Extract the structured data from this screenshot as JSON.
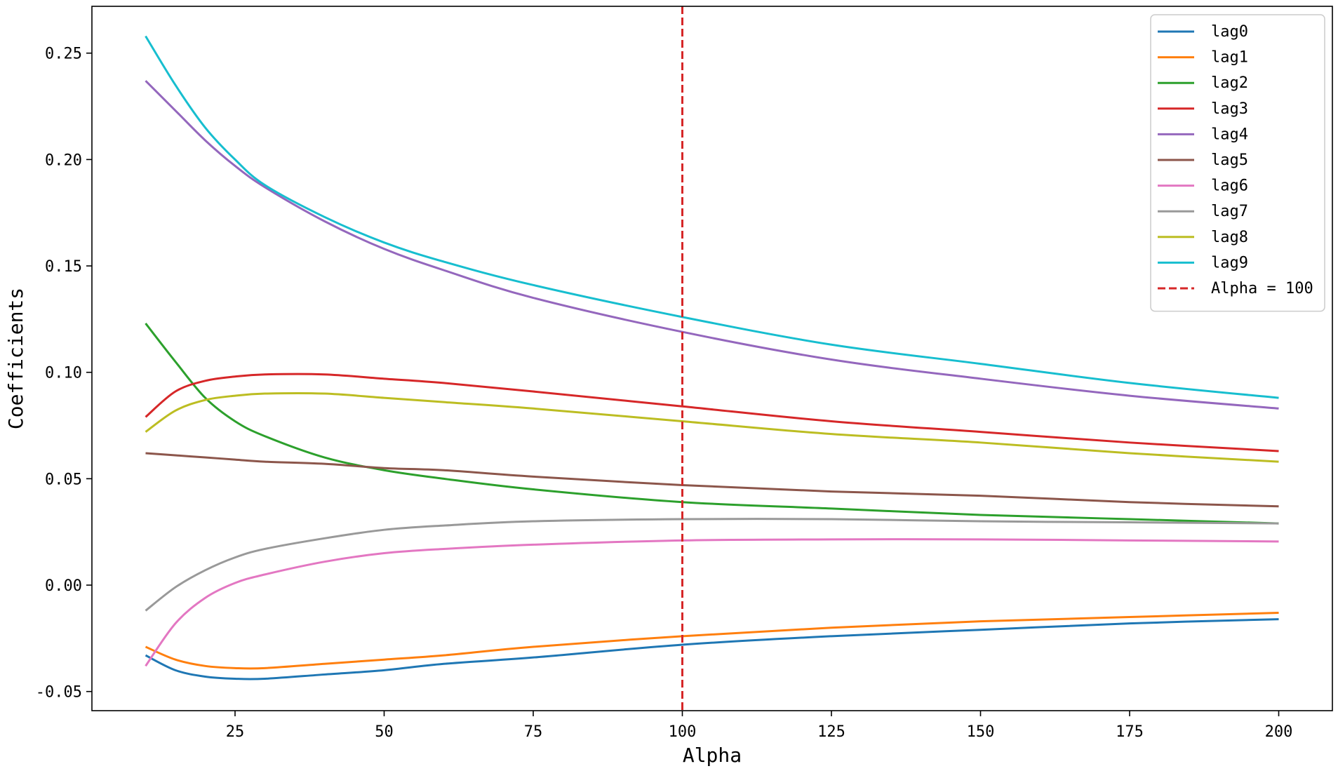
{
  "chart_data": {
    "type": "line",
    "xlabel": "Alpha",
    "ylabel": "Coefficients",
    "xlim": [
      1.0,
      209.0
    ],
    "ylim": [
      -0.059,
      0.272
    ],
    "xticks": [
      25,
      50,
      75,
      100,
      125,
      150,
      175,
      200
    ],
    "xtick_labels": [
      "25",
      "50",
      "75",
      "100",
      "125",
      "150",
      "175",
      "200"
    ],
    "yticks": [
      -0.05,
      0.0,
      0.05,
      0.1,
      0.15,
      0.2,
      0.25
    ],
    "ytick_labels": [
      "-0.05",
      "0.00",
      "0.05",
      "0.10",
      "0.15",
      "0.20",
      "0.25"
    ],
    "grid": false,
    "legend_position": "top-right",
    "x": [
      10,
      15,
      20,
      25,
      30,
      40,
      50,
      60,
      75,
      100,
      125,
      150,
      175,
      200
    ],
    "series": [
      {
        "name": "lag0",
        "color": "#1f77b4",
        "values": [
          -0.033,
          -0.04,
          -0.043,
          -0.044,
          -0.044,
          -0.042,
          -0.04,
          -0.037,
          -0.034,
          -0.028,
          -0.024,
          -0.021,
          -0.018,
          -0.016
        ]
      },
      {
        "name": "lag1",
        "color": "#ff7f0e",
        "values": [
          -0.029,
          -0.035,
          -0.038,
          -0.039,
          -0.039,
          -0.037,
          -0.035,
          -0.033,
          -0.029,
          -0.024,
          -0.02,
          -0.017,
          -0.015,
          -0.013
        ]
      },
      {
        "name": "lag2",
        "color": "#2ca02c",
        "values": [
          0.123,
          0.105,
          0.088,
          0.077,
          0.07,
          0.06,
          0.054,
          0.05,
          0.045,
          0.039,
          0.036,
          0.033,
          0.031,
          0.029
        ]
      },
      {
        "name": "lag3",
        "color": "#d62728",
        "values": [
          0.079,
          0.091,
          0.096,
          0.098,
          0.099,
          0.099,
          0.097,
          0.095,
          0.091,
          0.084,
          0.077,
          0.072,
          0.067,
          0.063
        ]
      },
      {
        "name": "lag4",
        "color": "#9467bd",
        "values": [
          0.237,
          0.223,
          0.209,
          0.197,
          0.187,
          0.171,
          0.158,
          0.148,
          0.135,
          0.119,
          0.106,
          0.097,
          0.089,
          0.083
        ]
      },
      {
        "name": "lag5",
        "color": "#8c564b",
        "values": [
          0.062,
          0.061,
          0.06,
          0.059,
          0.058,
          0.057,
          0.055,
          0.054,
          0.051,
          0.047,
          0.044,
          0.042,
          0.039,
          0.037
        ]
      },
      {
        "name": "lag6",
        "color": "#e377c2",
        "values": [
          -0.038,
          -0.018,
          -0.006,
          0.001,
          0.005,
          0.011,
          0.015,
          0.017,
          0.019,
          0.021,
          0.0215,
          0.0215,
          0.021,
          0.0205
        ]
      },
      {
        "name": "lag7",
        "color": "#999999",
        "values": [
          -0.012,
          -0.001,
          0.007,
          0.013,
          0.017,
          0.022,
          0.026,
          0.028,
          0.03,
          0.031,
          0.031,
          0.03,
          0.0295,
          0.029
        ]
      },
      {
        "name": "lag8",
        "color": "#bcbd22",
        "values": [
          0.072,
          0.082,
          0.087,
          0.089,
          0.09,
          0.09,
          0.088,
          0.086,
          0.083,
          0.077,
          0.071,
          0.067,
          0.062,
          0.058
        ]
      },
      {
        "name": "lag9",
        "color": "#17becf",
        "values": [
          0.258,
          0.235,
          0.215,
          0.2,
          0.188,
          0.173,
          0.161,
          0.152,
          0.141,
          0.126,
          0.113,
          0.104,
          0.095,
          0.088
        ]
      }
    ],
    "reference_line": {
      "name": "Alpha = 100",
      "x": 100,
      "color": "#d62728",
      "style": "dashed"
    }
  }
}
